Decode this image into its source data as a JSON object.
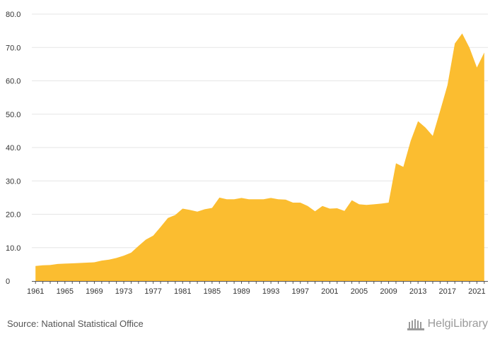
{
  "chart_data": {
    "type": "area",
    "color": "#fbbd30",
    "ylim": [
      0,
      80
    ],
    "xlim": [
      1960.5,
      2022.5
    ],
    "yticks": [
      "0",
      "10.0",
      "20.0",
      "30.0",
      "40.0",
      "50.0",
      "60.0",
      "70.0",
      "80.0"
    ],
    "ytick_values": [
      0,
      10,
      20,
      30,
      40,
      50,
      60,
      70,
      80
    ],
    "xticks": [
      "1961",
      "1965",
      "1969",
      "1973",
      "1977",
      "1981",
      "1985",
      "1989",
      "1993",
      "1997",
      "2001",
      "2005",
      "2009",
      "2013",
      "2017",
      "2021"
    ],
    "grid": true,
    "x": [
      1961,
      1962,
      1963,
      1964,
      1965,
      1966,
      1967,
      1968,
      1969,
      1970,
      1971,
      1972,
      1973,
      1974,
      1975,
      1976,
      1977,
      1978,
      1979,
      1980,
      1981,
      1982,
      1983,
      1984,
      1985,
      1986,
      1987,
      1988,
      1989,
      1990,
      1991,
      1992,
      1993,
      1994,
      1995,
      1996,
      1997,
      1998,
      1999,
      2000,
      2001,
      2002,
      2003,
      2004,
      2005,
      2006,
      2007,
      2008,
      2009,
      2010,
      2011,
      2012,
      2013,
      2014,
      2015,
      2016,
      2017,
      2018,
      2019,
      2020,
      2021,
      2022
    ],
    "values": [
      4.5,
      4.7,
      4.8,
      5.1,
      5.2,
      5.3,
      5.4,
      5.5,
      5.6,
      6.1,
      6.4,
      6.9,
      7.6,
      8.5,
      10.5,
      12.4,
      13.6,
      16.2,
      18.9,
      19.8,
      21.7,
      21.3,
      20.8,
      21.5,
      21.9,
      25.0,
      24.5,
      24.5,
      24.9,
      24.5,
      24.5,
      24.5,
      24.9,
      24.5,
      24.4,
      23.5,
      23.5,
      22.5,
      20.9,
      22.5,
      21.7,
      21.8,
      21.0,
      24.2,
      23.0,
      22.8,
      23.0,
      23.2,
      23.5,
      35.3,
      34.2,
      42.0,
      47.9,
      46.0,
      43.5,
      51.0,
      58.7,
      71.2,
      74.2,
      69.9,
      64.0,
      68.5
    ]
  },
  "footer": {
    "source": "Source: National Statistical Office",
    "brand": "HelgiLibrary",
    "brand_color": "#9a9a9a"
  }
}
